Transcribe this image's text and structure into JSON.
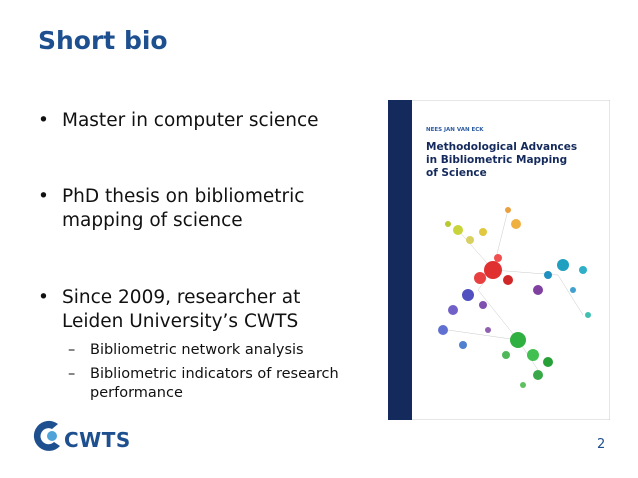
{
  "slide": {
    "title": "Short bio",
    "bullets": [
      {
        "lines": [
          "Master in computer science"
        ]
      },
      {
        "lines": [
          "PhD thesis on bibliometric",
          "mapping of science"
        ]
      },
      {
        "lines": [
          "Since 2009, researcher at",
          "Leiden University’s CWTS"
        ],
        "sub": [
          {
            "lines": [
              "Bibliometric network analysis"
            ]
          },
          {
            "lines": [
              "Bibliometric indicators of research",
              "performance"
            ]
          }
        ]
      }
    ],
    "book": {
      "author": "NEES JAN VAN ECK",
      "title_lines": [
        "Methodological Advances",
        "in Bibliometric Mapping",
        "of Science"
      ]
    },
    "logo": "CWTS",
    "page_number": "2"
  }
}
